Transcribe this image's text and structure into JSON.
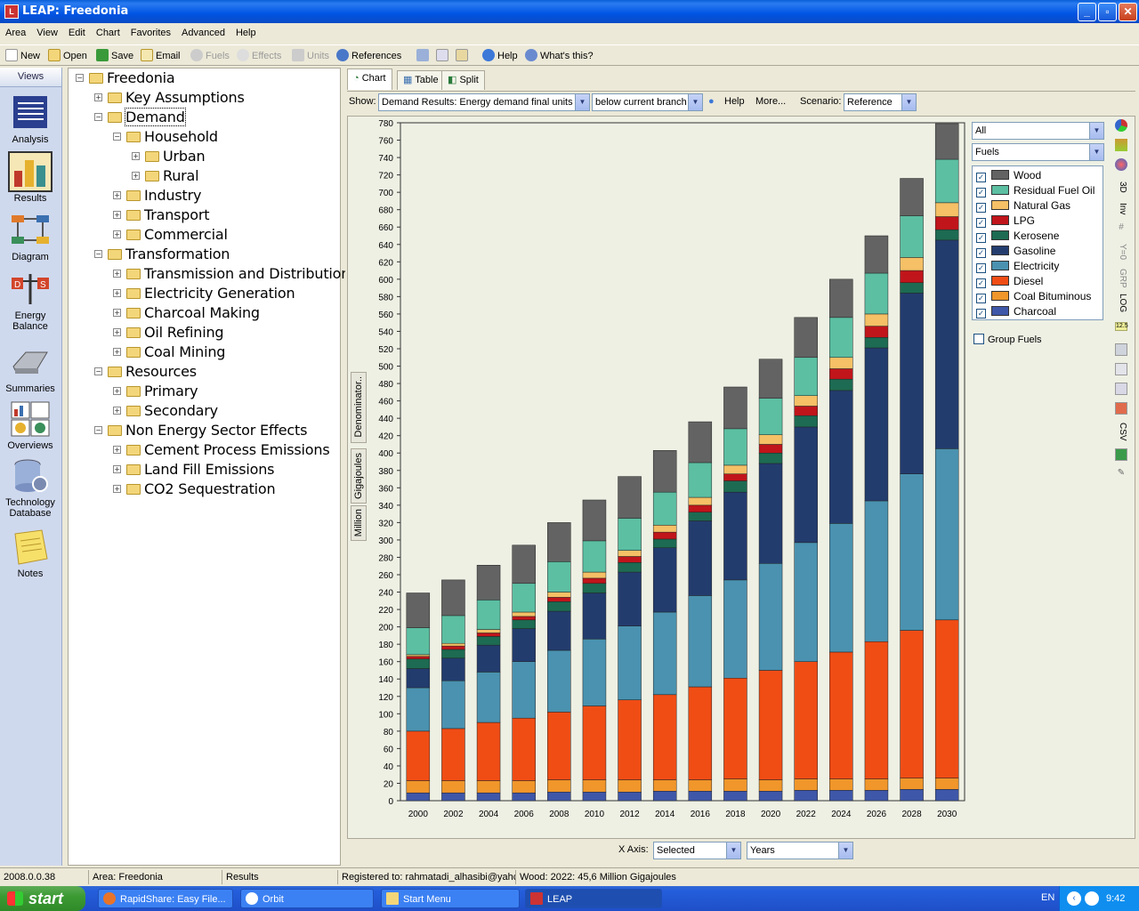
{
  "window": {
    "title": "LEAP: Freedonia",
    "min": "_",
    "max": "▫",
    "close": "✕"
  },
  "menu": [
    "Area",
    "View",
    "Edit",
    "Chart",
    "Favorites",
    "Advanced",
    "Help"
  ],
  "toolbar": {
    "new": "New",
    "open": "Open",
    "save": "Save",
    "email": "Email",
    "fuels": "Fuels",
    "effects": "Effects",
    "units": "Units",
    "references": "References",
    "help": "Help",
    "whats_this": "What's this?"
  },
  "views": {
    "header": "Views",
    "items": [
      "Analysis",
      "Results",
      "Diagram",
      "Energy Balance",
      "Summaries",
      "Overviews",
      "Technology Database",
      "Notes"
    ]
  },
  "tree": [
    {
      "label": "Freedonia",
      "level": 0,
      "pm": "−"
    },
    {
      "label": "Key Assumptions",
      "level": 1,
      "pm": "+"
    },
    {
      "label": "Demand",
      "level": 1,
      "pm": "−"
    },
    {
      "label": "Household",
      "level": 2,
      "pm": "−"
    },
    {
      "label": "Urban",
      "level": 3,
      "pm": "+"
    },
    {
      "label": "Rural",
      "level": 3,
      "pm": "+"
    },
    {
      "label": "Industry",
      "level": 2,
      "pm": "+"
    },
    {
      "label": "Transport",
      "level": 2,
      "pm": "+"
    },
    {
      "label": "Commercial",
      "level": 2,
      "pm": "+"
    },
    {
      "label": "Transformation",
      "level": 1,
      "pm": "−"
    },
    {
      "label": "Transmission and Distribution",
      "level": 2,
      "pm": "+"
    },
    {
      "label": "Electricity Generation",
      "level": 2,
      "pm": "+"
    },
    {
      "label": "Charcoal Making",
      "level": 2,
      "pm": "+"
    },
    {
      "label": "Oil Refining",
      "level": 2,
      "pm": "+"
    },
    {
      "label": "Coal Mining",
      "level": 2,
      "pm": "+"
    },
    {
      "label": "Resources",
      "level": 1,
      "pm": "−"
    },
    {
      "label": "Primary",
      "level": 2,
      "pm": "+"
    },
    {
      "label": "Secondary",
      "level": 2,
      "pm": "+"
    },
    {
      "label": "Non Energy Sector Effects",
      "level": 1,
      "pm": "−"
    },
    {
      "label": "Cement Process Emissions",
      "level": 2,
      "pm": "+"
    },
    {
      "label": "Land Fill Emissions",
      "level": 2,
      "pm": "+"
    },
    {
      "label": "CO2 Sequestration",
      "level": 2,
      "pm": "+"
    }
  ],
  "tabs": {
    "chart": "Chart",
    "table": "Table",
    "split": "Split"
  },
  "showbar": {
    "show_label": "Show:",
    "show_value": "Demand Results: Energy demand final units",
    "branch_value": "below current branch",
    "help": "Help",
    "more": "More...",
    "scenario_label": "Scenario:",
    "scenario_value": "Reference"
  },
  "side_tabs": {
    "denominator": "Denominator..",
    "unit": "Gigajoules",
    "scale": "Million"
  },
  "filters": {
    "all": "All",
    "fuels": "Fuels",
    "group_fuels": "Group Fuels"
  },
  "xaxis": {
    "label": "X Axis:",
    "selected": "Selected",
    "years": "Years"
  },
  "right_tools": [
    "3D",
    "Inv",
    "Y=0",
    "GRP",
    "LOG",
    "12.5",
    "CSV"
  ],
  "status": {
    "version": "2008.0.0.38",
    "area": "Area: Freedonia",
    "view": "Results",
    "registered": "Registered to: rahmatadi_alhasibi@yahc",
    "hover": "Wood: 2022: 45,6 Million Gigajoules"
  },
  "taskbar": {
    "start": "start",
    "tasks": [
      "RapidShare: Easy File...",
      "Orbit",
      "Start Menu",
      "LEAP"
    ],
    "lang": "EN",
    "clock": "9:42"
  },
  "chart_data": {
    "type": "bar",
    "stacked": true,
    "ylim": [
      0,
      780
    ],
    "ytick_step": 20,
    "categories": [
      "2000",
      "2002",
      "2004",
      "2006",
      "2008",
      "2010",
      "2012",
      "2014",
      "2016",
      "2018",
      "2020",
      "2022",
      "2024",
      "2026",
      "2028",
      "2030"
    ],
    "series": [
      {
        "name": "Charcoal",
        "color": "#3f57a8",
        "values": [
          9,
          9,
          9,
          9,
          10,
          10,
          10,
          11,
          11,
          11,
          11,
          12,
          12,
          12,
          13,
          13
        ]
      },
      {
        "name": "Coal Bituminous",
        "color": "#f0962a",
        "values": [
          14,
          14,
          14,
          14,
          14,
          14,
          14,
          13,
          13,
          14,
          13,
          13,
          13,
          13,
          13,
          13
        ]
      },
      {
        "name": "Diesel",
        "color": "#f04d15",
        "values": [
          57,
          60,
          67,
          72,
          78,
          85,
          92,
          98,
          107,
          116,
          126,
          135,
          146,
          158,
          170,
          182
        ]
      },
      {
        "name": "Electricity",
        "color": "#4a92b0",
        "values": [
          50,
          55,
          58,
          65,
          71,
          77,
          85,
          95,
          105,
          113,
          123,
          137,
          148,
          162,
          180,
          197
        ]
      },
      {
        "name": "Gasoline",
        "color": "#233c6e",
        "values": [
          22,
          26,
          31,
          38,
          45,
          53,
          62,
          74,
          86,
          101,
          115,
          133,
          153,
          176,
          208,
          240
        ]
      },
      {
        "name": "Kerosene",
        "color": "#1d6b52",
        "values": [
          11,
          10,
          10,
          10,
          11,
          11,
          11,
          10,
          10,
          13,
          12,
          13,
          13,
          12,
          12,
          12
        ]
      },
      {
        "name": "LPG",
        "color": "#c0151b",
        "values": [
          3,
          4,
          4,
          4,
          5,
          6,
          7,
          8,
          8,
          8,
          10,
          11,
          12,
          13,
          14,
          15
        ]
      },
      {
        "name": "Natural Gas",
        "color": "#f5c066",
        "values": [
          2,
          3,
          4,
          5,
          6,
          7,
          7,
          8,
          9,
          10,
          11,
          12,
          13,
          14,
          15,
          16
        ]
      },
      {
        "name": "Residual Fuel Oil",
        "color": "#5cbfa2",
        "values": [
          31,
          32,
          34,
          33,
          35,
          36,
          37,
          38,
          40,
          42,
          42,
          44,
          46,
          47,
          48,
          50
        ]
      },
      {
        "name": "Wood",
        "color": "#636363",
        "values": [
          40,
          41,
          40,
          44,
          45,
          47,
          48,
          48,
          47,
          48,
          45,
          46,
          44,
          43,
          43,
          41
        ]
      }
    ]
  }
}
